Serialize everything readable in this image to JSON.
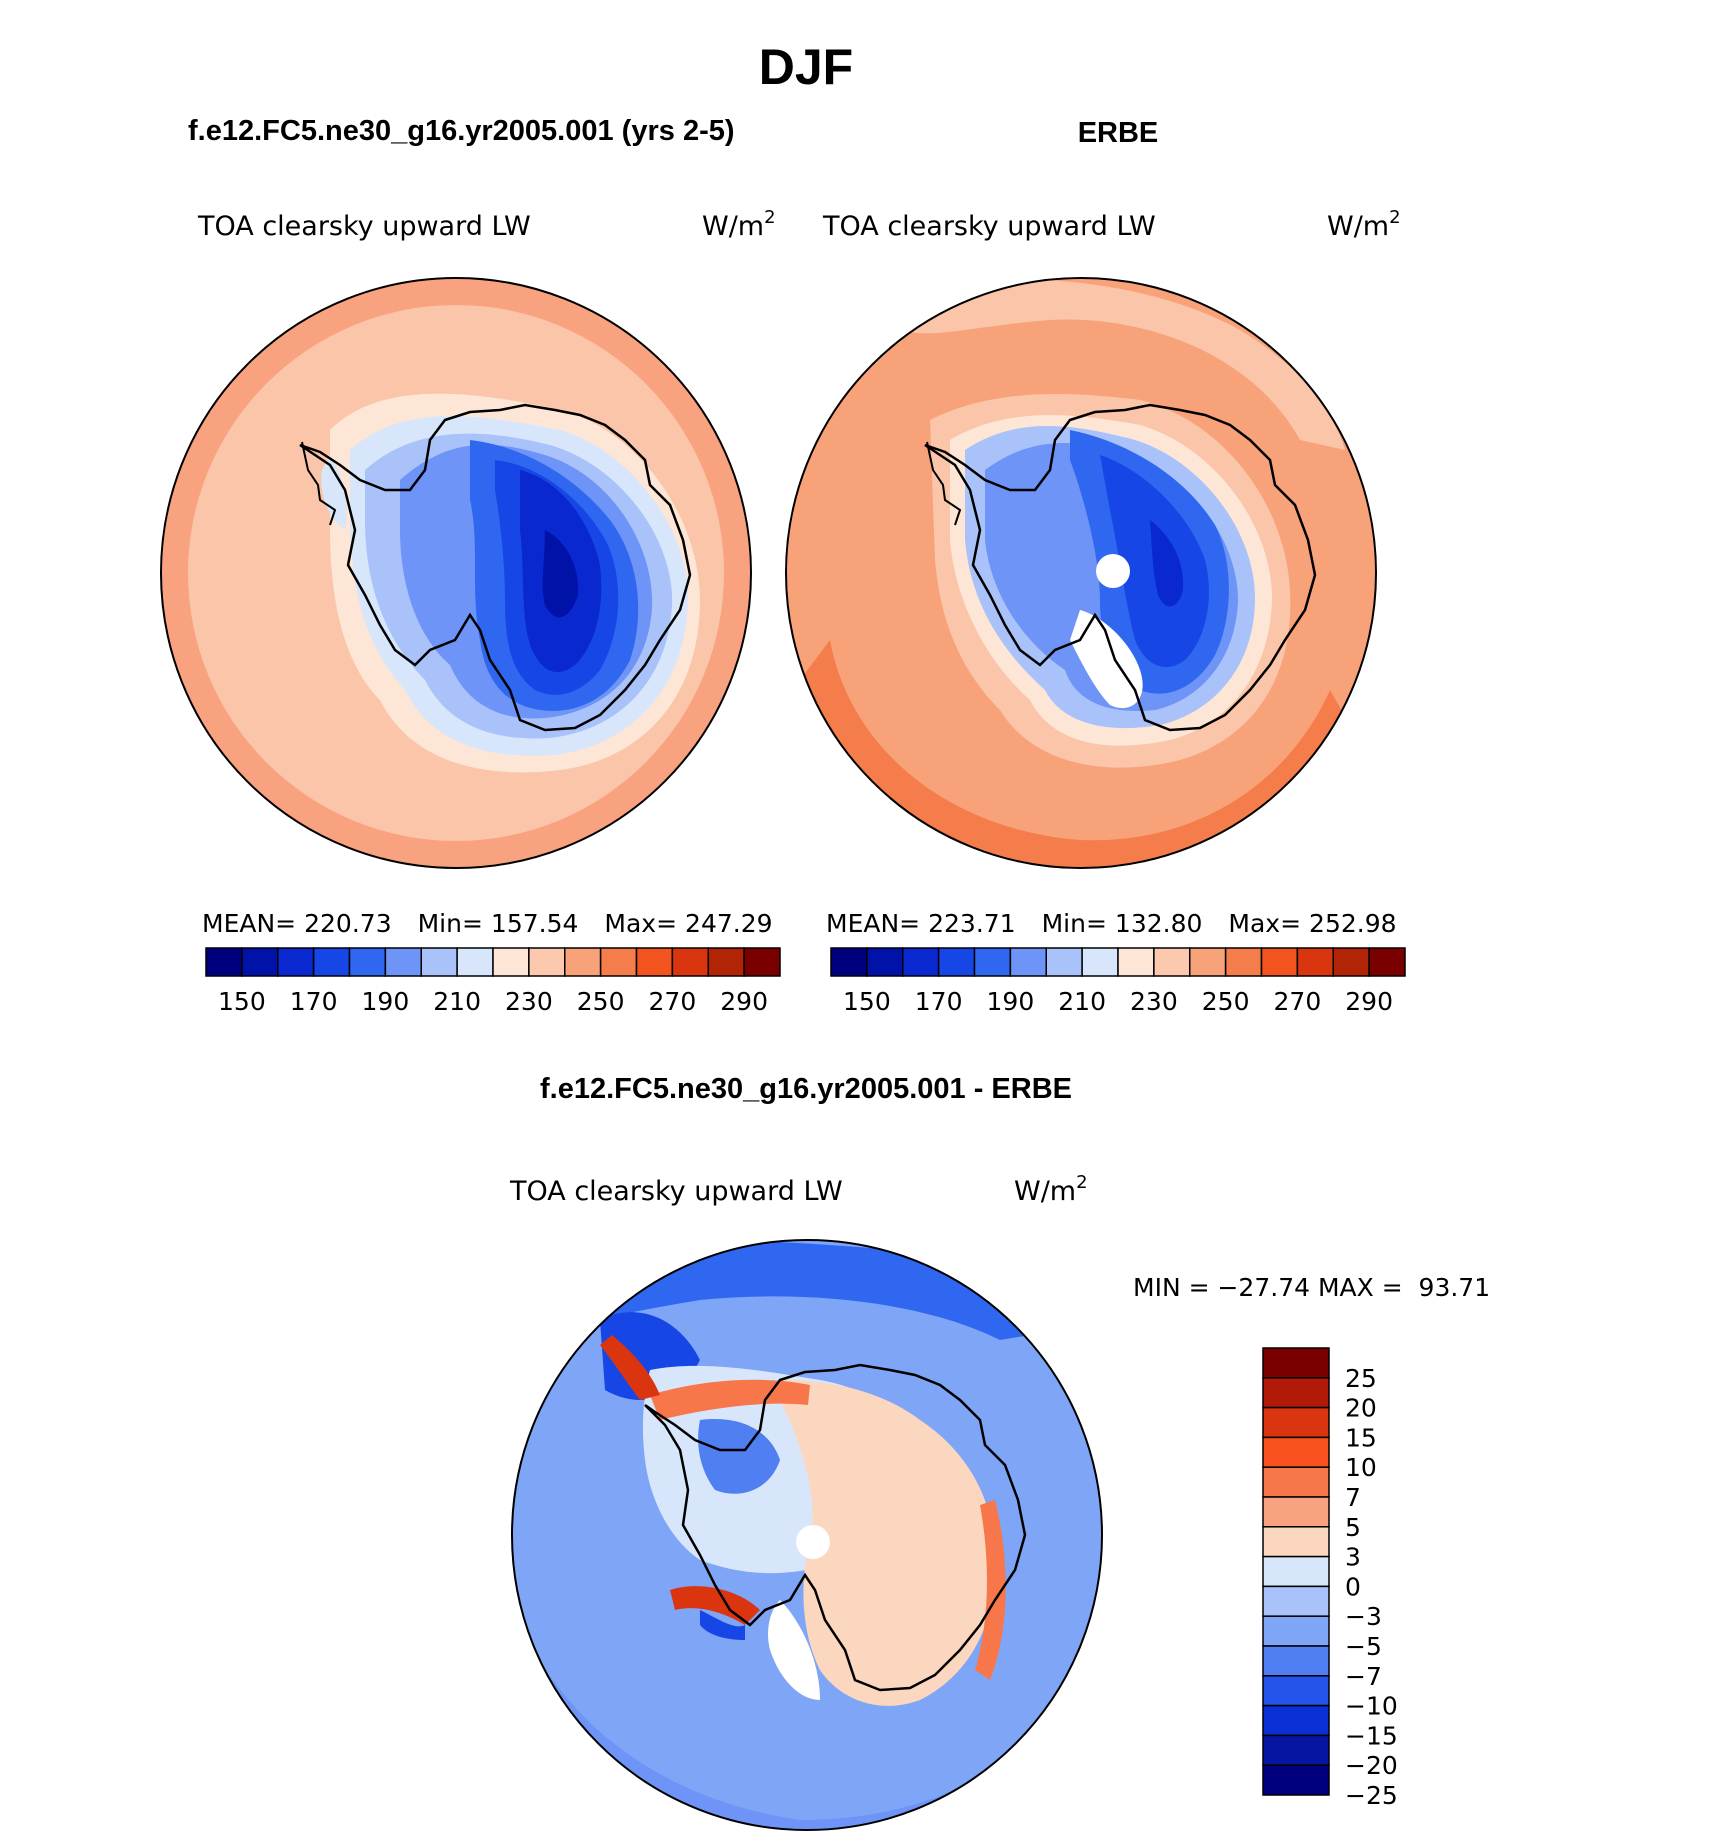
{
  "main_title": "DJF",
  "panels": {
    "model": {
      "header": "f.e12.FC5.ne30_g16.yr2005.001 (yrs 2-5)",
      "variable": "TOA clearsky upward LW",
      "units": "W/m",
      "units_exp": "2",
      "mean_label": "MEAN=",
      "mean_value": "220.73",
      "min_label": "Min=",
      "min_value": "157.54",
      "max_label": "Max=",
      "max_value": "247.29"
    },
    "obs": {
      "header": "ERBE",
      "variable": "TOA clearsky upward LW",
      "units": "W/m",
      "units_exp": "2",
      "mean_label": "MEAN=",
      "mean_value": "223.71",
      "min_label": "Min=",
      "min_value": "132.80",
      "max_label": "Max=",
      "max_value": "252.98"
    },
    "diff": {
      "header": "f.e12.FC5.ne30_g16.yr2005.001 - ERBE",
      "variable": "TOA clearsky upward LW",
      "units": "W/m",
      "units_exp": "2",
      "minmax_label": "MIN = −27.74 MAX =  93.71"
    }
  },
  "abs_colorbar": {
    "colors": [
      "#00007f",
      "#0012a8",
      "#0a28d0",
      "#1646e6",
      "#2f67f0",
      "#6d94f6",
      "#a9c2fa",
      "#d7e6fb",
      "#fde6d6",
      "#fcc9ae",
      "#f8a27a",
      "#f57c4b",
      "#f1541f",
      "#d93610",
      "#b22406",
      "#7a0000"
    ],
    "tick_labels": [
      "150",
      "170",
      "190",
      "210",
      "230",
      "250",
      "270",
      "290"
    ]
  },
  "diff_colorbar": {
    "colors": [
      "#7a0000",
      "#b11a06",
      "#db3510",
      "#fa5120",
      "#f8774a",
      "#f8a27f",
      "#fcd7bf",
      "#d7e6fb",
      "#a9c2fa",
      "#7fa5f7",
      "#4f7ff0",
      "#2454ea",
      "#0a2fd4",
      "#0616a3",
      "#00007f"
    ],
    "tick_labels": [
      "25",
      "20",
      "15",
      "10",
      "7",
      "5",
      "3",
      "0",
      "−3",
      "−5",
      "−7",
      "−10",
      "−15",
      "−20",
      "−25"
    ]
  }
}
